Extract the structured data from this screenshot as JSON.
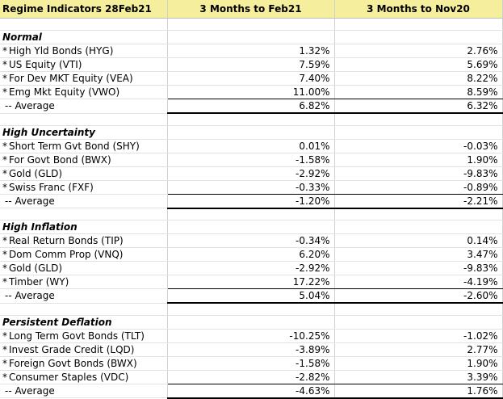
{
  "header": {
    "col1": "Regime Indicators 28Feb21",
    "col2": "3 Months to Feb21",
    "col3": "3 Months to Nov20"
  },
  "sections": [
    {
      "title": "Normal",
      "rows": [
        {
          "name": "High Yld Bonds (HYG)",
          "feb21": "1.32%",
          "nov20": "2.76%"
        },
        {
          "name": "US Equity (VTI)",
          "feb21": "7.59%",
          "nov20": "5.69%"
        },
        {
          "name": "For Dev MKT Equity (VEA)",
          "feb21": "7.40%",
          "nov20": "8.22%"
        },
        {
          "name": "Emg Mkt Equity (VWO)",
          "feb21": "11.00%",
          "nov20": "8.59%"
        }
      ],
      "average": {
        "label": "-- Average",
        "feb21": "6.82%",
        "nov20": "6.32%"
      }
    },
    {
      "title": "High Uncertainty",
      "rows": [
        {
          "name": "Short Term Gvt Bond (SHY)",
          "feb21": "0.01%",
          "nov20": "-0.03%"
        },
        {
          "name": "For Govt Bond (BWX)",
          "feb21": "-1.58%",
          "nov20": "1.90%"
        },
        {
          "name": "Gold (GLD)",
          "feb21": "-2.92%",
          "nov20": "-9.83%"
        },
        {
          "name": "Swiss Franc (FXF)",
          "feb21": "-0.33%",
          "nov20": "-0.89%"
        }
      ],
      "average": {
        "label": "-- Average",
        "feb21": "-1.20%",
        "nov20": "-2.21%"
      }
    },
    {
      "title": "High Inflation",
      "rows": [
        {
          "name": "Real Return Bonds (TIP)",
          "feb21": "-0.34%",
          "nov20": "0.14%"
        },
        {
          "name": "Dom Comm Prop (VNQ)",
          "feb21": "6.20%",
          "nov20": "3.47%"
        },
        {
          "name": "Gold (GLD)",
          "feb21": "-2.92%",
          "nov20": "-9.83%"
        },
        {
          "name": "Timber (WY)",
          "feb21": "17.22%",
          "nov20": "-4.19%"
        }
      ],
      "average": {
        "label": "-- Average",
        "feb21": "5.04%",
        "nov20": "-2.60%"
      }
    },
    {
      "title": "Persistent Deflation",
      "rows": [
        {
          "name": "Long Term Govt Bonds (TLT)",
          "feb21": "-10.25%",
          "nov20": "-1.02%"
        },
        {
          "name": "Invest Grade Credit (LQD)",
          "feb21": "-3.89%",
          "nov20": "2.77%"
        },
        {
          "name": "Foreign Govt Bonds (BWX)",
          "feb21": "-1.58%",
          "nov20": "1.90%"
        },
        {
          "name": "Consumer Staples (VDC)",
          "feb21": "-2.82%",
          "nov20": "3.39%"
        }
      ],
      "average": {
        "label": "-- Average",
        "feb21": "-4.63%",
        "nov20": "1.76%"
      }
    }
  ],
  "bullet": "*",
  "colors": {
    "header_bg": "#f5ee9c",
    "grid": "#d0d0d0"
  }
}
